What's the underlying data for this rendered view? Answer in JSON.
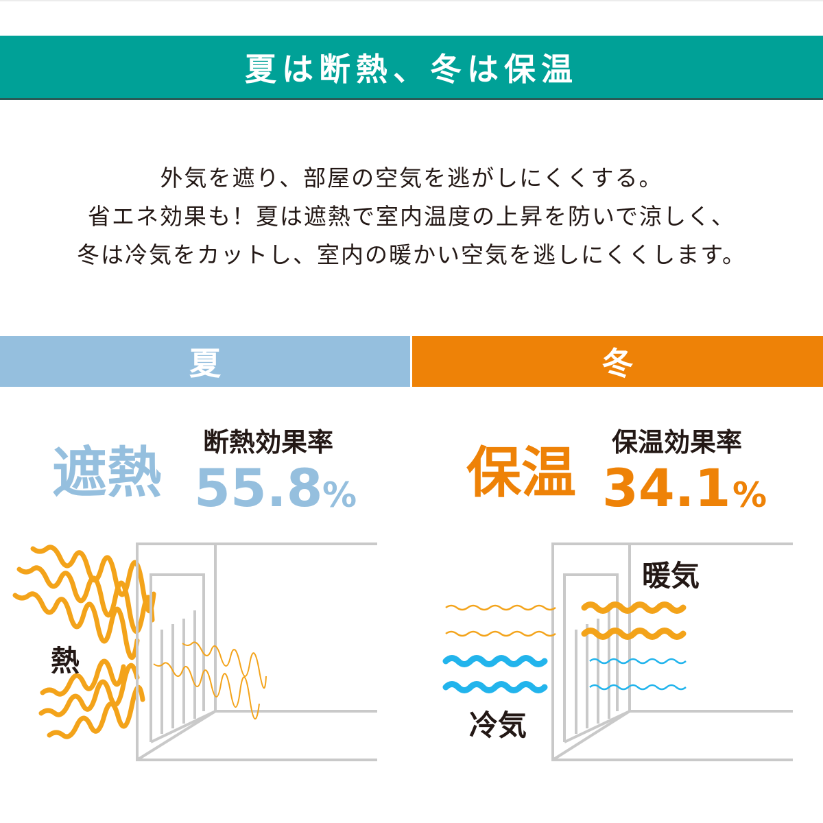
{
  "header": {
    "title": "夏は断熱、冬は保温"
  },
  "description": [
    "外気を遮り、部屋の空気を逃がしにくくする。",
    "省エネ効果も！夏は遮熱で室内温度の上昇を防いで涼しく、",
    "冬は冷気をカットし、室内の暖かい空気を逃しにくくします。"
  ],
  "summer": {
    "tab": "夏",
    "big_word": "遮熱",
    "rate_label": "断熱効果率",
    "rate_value": "55.8",
    "rate_unit": "%",
    "diagram_label": "熱",
    "color": "#95bfde"
  },
  "winter": {
    "tab": "冬",
    "big_word": "保温",
    "rate_label": "保温効果率",
    "rate_value": "34.1",
    "rate_unit": "%",
    "warm_label": "暖気",
    "cold_label": "冷気",
    "color": "#ee8207"
  },
  "colors": {
    "teal": "#00a197",
    "heat": "#f3a31a",
    "cold": "#22b4ec",
    "frame": "#c9c9c9"
  },
  "icons": [
    "heat-wave-icon",
    "window-frame-icon",
    "cold-wave-icon",
    "warm-wave-icon"
  ]
}
